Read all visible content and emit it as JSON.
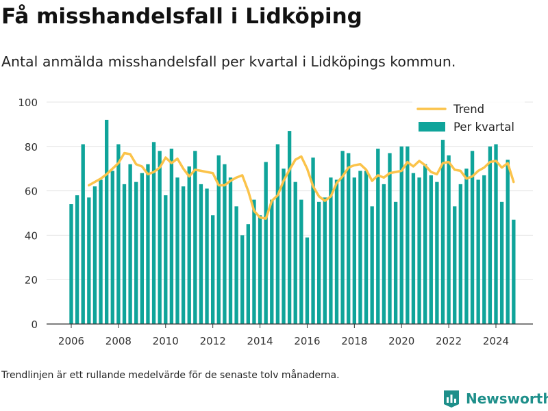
{
  "title": "Få misshandelsfall i Lidköping",
  "subtitle": "Antal anmälda misshandelsfall per kvartal i Lidköpings kommun.",
  "footnote": "Trendlinjen är ett rullande medelvärde för de senaste tolv månaderna.",
  "brand": {
    "name": "Newsworthy",
    "icon": "bar-chart-logo-icon"
  },
  "colors": {
    "bars": "#0fa49a",
    "trend": "#fbc34a",
    "grid": "#e3e3e3",
    "brand": "#1e8f8a"
  },
  "chart_data": {
    "type": "bar",
    "ylim": [
      0,
      100
    ],
    "yticks": [
      0,
      20,
      40,
      60,
      80,
      100
    ],
    "xticks": [
      "2006",
      "2008",
      "2010",
      "2012",
      "2014",
      "2016",
      "2018",
      "2020",
      "2022",
      "2024"
    ],
    "legend_position": "top-right",
    "grid": true,
    "series": [
      {
        "name": "Per kvartal",
        "kind": "bar",
        "start": "2006Q1",
        "values": [
          54,
          58,
          81,
          57,
          62,
          65,
          92,
          69,
          81,
          63,
          72,
          64,
          68,
          72,
          82,
          78,
          58,
          79,
          66,
          62,
          71,
          78,
          63,
          61,
          49,
          76,
          72,
          66,
          53,
          40,
          45,
          56,
          49,
          73,
          56,
          81,
          70,
          87,
          64,
          56,
          39,
          75,
          55,
          57,
          66,
          65,
          78,
          77,
          66,
          69,
          69,
          53,
          79,
          63,
          77,
          55,
          80,
          80,
          68,
          66,
          72,
          67,
          64,
          83,
          76,
          53,
          63,
          70,
          78,
          65,
          67,
          80,
          81,
          55,
          74,
          47
        ]
      },
      {
        "name": "Trend",
        "kind": "line",
        "start": "2006Q4",
        "values": [
          62.5,
          64,
          65.5,
          67.5,
          70,
          72.5,
          77,
          76.5,
          72,
          71,
          67.5,
          68.5,
          70.5,
          75,
          72.5,
          74.5,
          70,
          66.5,
          69.5,
          69,
          68.5,
          68,
          62.5,
          62.5,
          64.5,
          66,
          67,
          60,
          51,
          48,
          47.5,
          55.5,
          58,
          64.5,
          69.5,
          74,
          75.5,
          70,
          62,
          57.5,
          55.5,
          57.5,
          63.5,
          66.5,
          70.5,
          71.5,
          72,
          69.5,
          64.5,
          67,
          66,
          68,
          68.5,
          69,
          73,
          71,
          73.5,
          71.5,
          68.5,
          67.5,
          72.5,
          73,
          69.5,
          69,
          65.5,
          66.5,
          69,
          70.5,
          73,
          73.5,
          70.5,
          72.5,
          64
        ]
      }
    ]
  }
}
